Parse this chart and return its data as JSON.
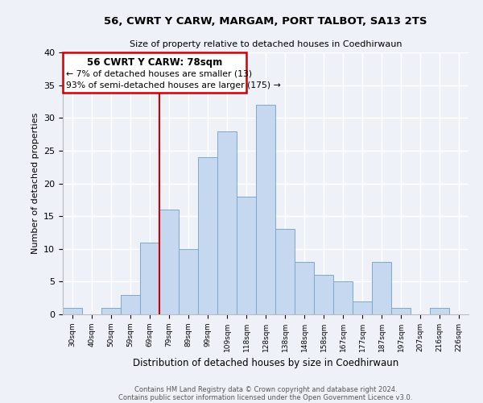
{
  "title1": "56, CWRT Y CARW, MARGAM, PORT TALBOT, SA13 2TS",
  "title2": "Size of property relative to detached houses in Coedhirwaun",
  "xlabel": "Distribution of detached houses by size in Coedhirwaun",
  "ylabel": "Number of detached properties",
  "categories": [
    "30sqm",
    "40sqm",
    "50sqm",
    "59sqm",
    "69sqm",
    "79sqm",
    "89sqm",
    "99sqm",
    "109sqm",
    "118sqm",
    "128sqm",
    "138sqm",
    "148sqm",
    "158sqm",
    "167sqm",
    "177sqm",
    "187sqm",
    "197sqm",
    "207sqm",
    "216sqm",
    "226sqm"
  ],
  "values": [
    1,
    0,
    1,
    3,
    11,
    16,
    10,
    24,
    28,
    18,
    32,
    13,
    8,
    6,
    5,
    2,
    8,
    1,
    0,
    1,
    0
  ],
  "bar_color": "#c5d8f0",
  "bar_edge_color": "#7fa8cc",
  "annotation_title": "56 CWRT Y CARW: 78sqm",
  "annotation_line1": "← 7% of detached houses are smaller (13)",
  "annotation_line2": "93% of semi-detached houses are larger (175) →",
  "annotation_box_color": "#ffffff",
  "annotation_box_edge": "#cc0000",
  "ylim": [
    0,
    40
  ],
  "footnote1": "Contains HM Land Registry data © Crown copyright and database right 2024.",
  "footnote2": "Contains public sector information licensed under the Open Government Licence v3.0.",
  "bg_color": "#eef2f8"
}
